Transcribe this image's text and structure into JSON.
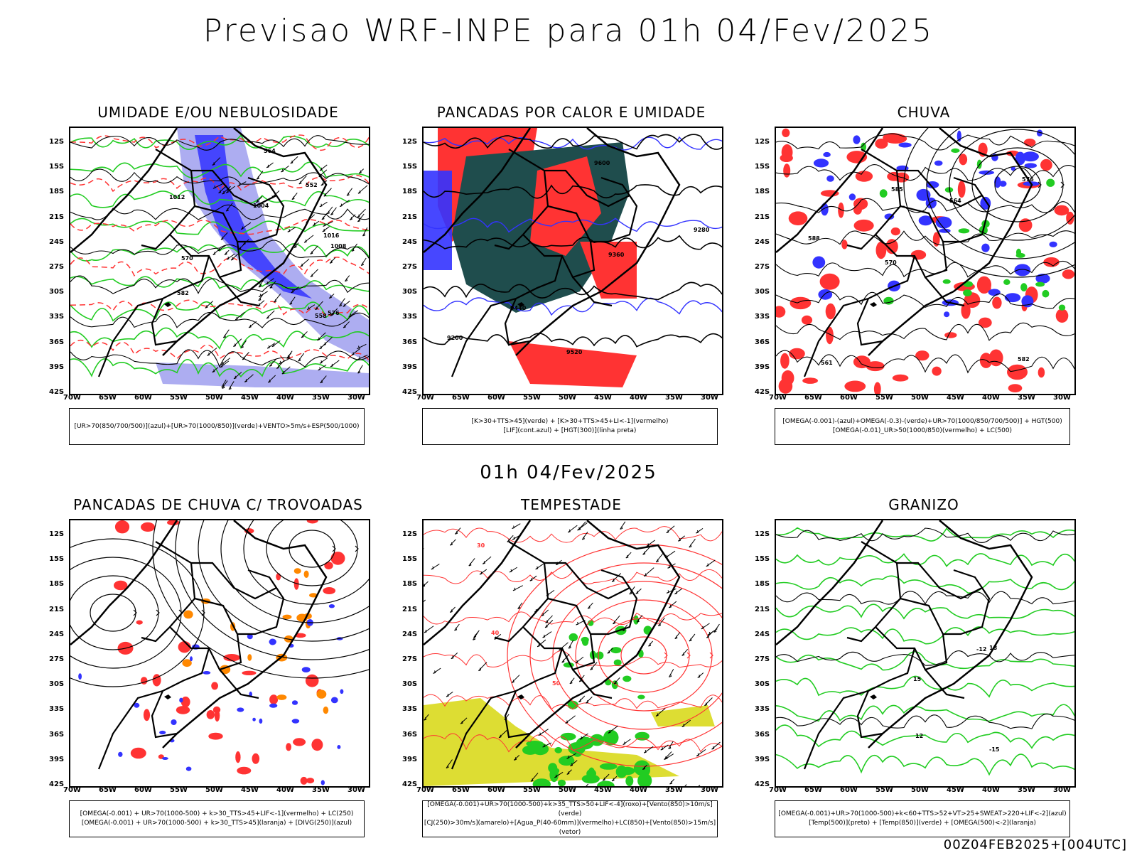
{
  "title": "Previsao WRF-INPE  para 01h 04/Fev/2025",
  "middle_date": "01h 04/Fev/2025",
  "footer": "00Z04FEB2025+[004UTC]",
  "latitudes": [
    "12S",
    "15S",
    "18S",
    "21S",
    "24S",
    "27S",
    "30S",
    "33S",
    "36S",
    "39S",
    "42S"
  ],
  "longitudes": [
    "70W",
    "65W",
    "60W",
    "55W",
    "50W",
    "45W",
    "40W",
    "35W",
    "30W"
  ],
  "colors": {
    "blue": "#3333ff",
    "lightblue": "#9999ee",
    "green": "#22cc22",
    "red": "#ff3333",
    "darkteal": "#1f4d4d",
    "orange": "#ff8800",
    "yellow": "#dddd33"
  },
  "panels": [
    {
      "id": "umidade",
      "title": "UMIDADE E/OU NEBULOSIDADE",
      "legend": [
        "[UR>70(850/700/500)](azul)+[UR>70(1000/850)](verde)+VENTO>5m/s+ESP(500/1000)"
      ],
      "contour_labels": [
        "1012",
        "1016",
        "1004",
        "1008",
        "570",
        "576",
        "582",
        "564",
        "558",
        "552"
      ]
    },
    {
      "id": "pancadas",
      "title": "PANCADAS POR CALOR E UMIDADE",
      "legend": [
        "[K>30+TTS>45](verde) + [K>30+TTS>45+LI<-1](vermelho)",
        "[LIF](cont.azul) + [HGT(300)](linha preta)"
      ],
      "contour_labels": [
        "9600",
        "9520",
        "9440",
        "9360",
        "9280",
        "9200"
      ]
    },
    {
      "id": "chuva",
      "title": "CHUVA",
      "legend": [
        "[OMEGA(-0.001)-(azul)+OMEGA(-0.3)-(verde)+UR>70(1000/850/700/500)] + HGT(500)",
        "[OMEGA(-0.01)_UR>50(1000/850)(vermelho) + LC(500)"
      ],
      "contour_labels": [
        "582",
        "588",
        "576",
        "570",
        "564",
        "561",
        "585"
      ]
    },
    {
      "id": "trovoadas",
      "title": "PANCADAS DE CHUVA C/ TROVOADAS",
      "legend": [
        "[OMEGA(-0.001) + UR>70(1000-500) + k>30_TTS>45+LIF<-1](vermelho) + LC(250)",
        "[OMEGA(-0.001) + UR>70(1000-500) + k>30_TTS>45](laranja) + [DIVG(250)](azul)"
      ],
      "contour_labels": []
    },
    {
      "id": "tempestade",
      "title": "TEMPESTADE",
      "legend": [
        "[OMEGA(-0.001)+UR>70(1000-500)+k>35_TTS>50+LIF<-4](roxo)+[Vento(850)>10m/s](verde)",
        "[CJ(250)>30m/s](amarelo)+[Agua_P(40-60mm)](vermelho)+LC(850)+[Vento(850)>15m/s](vetor)"
      ],
      "contour_labels": [
        "50",
        "40",
        "30"
      ]
    },
    {
      "id": "granizo",
      "title": "GRANIZO",
      "legend": [
        "[OMEGA(-0.001)+UR>70(1000-500)+k<60+TTS>52+VT>25+SWEAT>220+LIF<-2](azul)",
        "[Temp(500)](preto) + [Temp(850)](verde) + [OMEGA(500)<-2](laranja)"
      ],
      "contour_labels": [
        "-12",
        "-15",
        "18",
        "15",
        "12"
      ]
    }
  ]
}
